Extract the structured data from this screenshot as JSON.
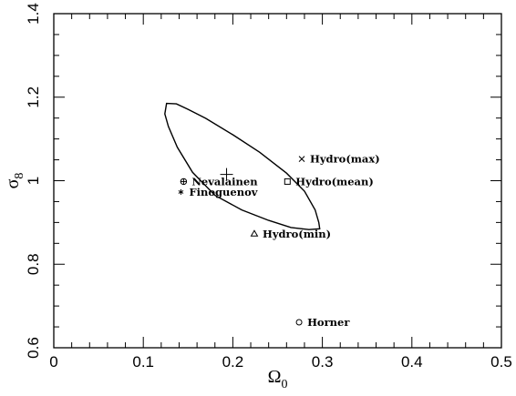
{
  "chart_data": {
    "type": "scatter",
    "title": "",
    "xlabel": "Ω",
    "xlabel_sub": "0",
    "ylabel": "σ",
    "ylabel_sub": "8",
    "xlim": [
      0,
      0.5
    ],
    "ylim": [
      0.6,
      1.4
    ],
    "x_ticks": [
      0,
      0.1,
      0.2,
      0.3,
      0.4,
      0.5
    ],
    "x_tick_labels": [
      "0",
      "0.1",
      "0.2",
      "0.3",
      "0.4",
      "0.5"
    ],
    "y_ticks": [
      0.6,
      0.8,
      1.0,
      1.2,
      1.4
    ],
    "y_tick_labels": [
      "0.6",
      "0.8",
      "1",
      "1.2",
      "1.4"
    ],
    "x_minor_step": 0.02,
    "y_minor_step": 0.05,
    "grid": false,
    "best_fit": {
      "x": 0.193,
      "y": 1.015,
      "marker": "plus"
    },
    "contour": [
      [
        0.126,
        1.185
      ],
      [
        0.137,
        1.184
      ],
      [
        0.15,
        1.171
      ],
      [
        0.17,
        1.149
      ],
      [
        0.2,
        1.11
      ],
      [
        0.23,
        1.068
      ],
      [
        0.26,
        1.018
      ],
      [
        0.28,
        0.975
      ],
      [
        0.292,
        0.93
      ],
      [
        0.296,
        0.9
      ],
      [
        0.297,
        0.885
      ],
      [
        0.285,
        0.883
      ],
      [
        0.265,
        0.888
      ],
      [
        0.24,
        0.905
      ],
      [
        0.21,
        0.93
      ],
      [
        0.18,
        0.965
      ],
      [
        0.155,
        1.02
      ],
      [
        0.138,
        1.08
      ],
      [
        0.128,
        1.13
      ],
      [
        0.124,
        1.16
      ],
      [
        0.126,
        1.185
      ]
    ],
    "points": [
      {
        "label": "Hydro(max)",
        "x": 0.277,
        "y": 1.052,
        "marker": "cross"
      },
      {
        "label": "Hydro(mean)",
        "x": 0.261,
        "y": 0.998,
        "marker": "square"
      },
      {
        "label": "Nevalainen",
        "x": 0.145,
        "y": 0.998,
        "marker": "circle-plus"
      },
      {
        "label": "Finoguenov",
        "x": 0.142,
        "y": 0.973,
        "marker": "asterisk"
      },
      {
        "label": "Hydro(min)",
        "x": 0.224,
        "y": 0.873,
        "marker": "triangle"
      },
      {
        "label": "Horner",
        "x": 0.274,
        "y": 0.661,
        "marker": "circle"
      }
    ]
  }
}
